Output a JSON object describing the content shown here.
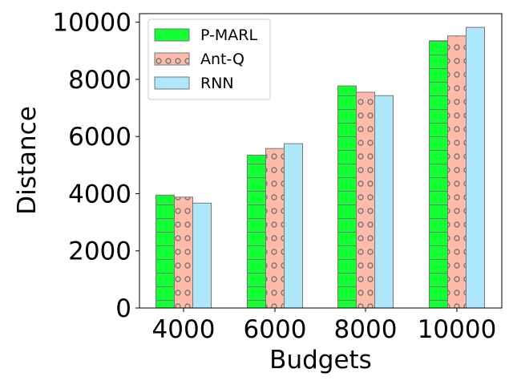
{
  "chart_data": {
    "type": "bar",
    "title": "",
    "xlabel": "Budgets",
    "ylabel": "Distance",
    "categories": [
      "4000",
      "6000",
      "8000",
      "10000"
    ],
    "ylim": [
      0,
      10300
    ],
    "yticks": [
      "0",
      "2000",
      "4000",
      "6000",
      "8000",
      "10000"
    ],
    "legend_position": "top-left",
    "grid": false,
    "series": [
      {
        "name": "P-MARL",
        "values": [
          3950,
          5350,
          7770,
          9350
        ],
        "color": "#11ff33",
        "hatch": "horizontal-lines"
      },
      {
        "name": "Ant-Q",
        "values": [
          3880,
          5580,
          7550,
          9520
        ],
        "color": "#ffbbaa",
        "hatch": "circles"
      },
      {
        "name": "RNN",
        "values": [
          3670,
          5750,
          7430,
          9820
        ],
        "color": "#aee6fb",
        "hatch": "none"
      }
    ]
  }
}
